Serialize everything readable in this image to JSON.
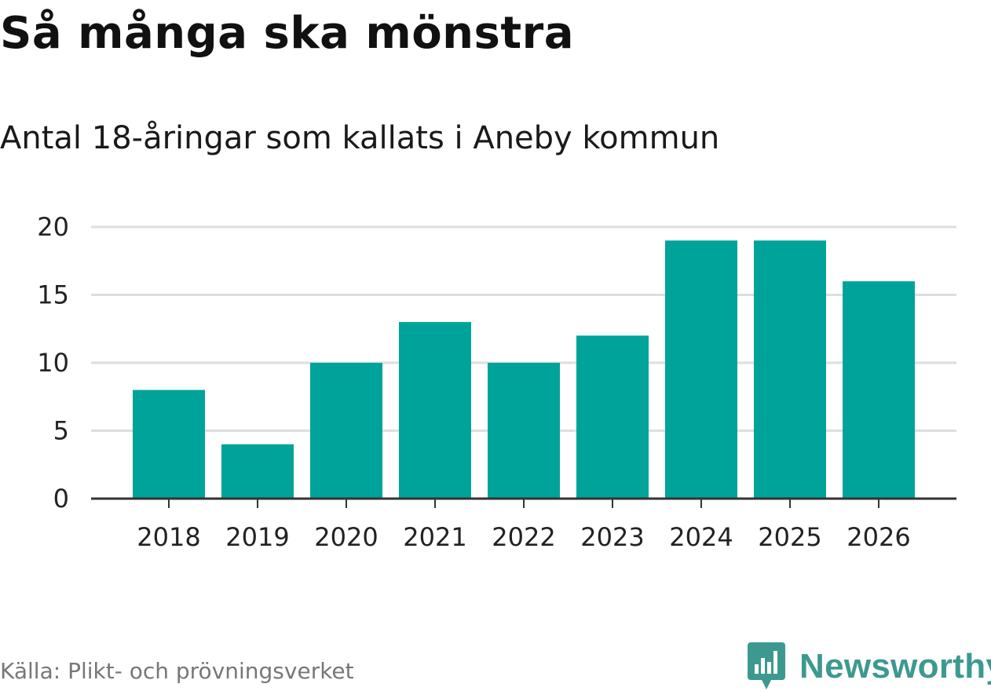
{
  "colors": {
    "bar": "#00a39a",
    "grid": "#dedede",
    "axis": "#333333",
    "tick_text": "#222222",
    "brand": "#3d9990"
  },
  "chart_data": {
    "type": "bar",
    "title": "Så många ska mönstra",
    "subtitle": "Antal 18-åringar som kallats i Aneby kommun",
    "categories": [
      "2018",
      "2019",
      "2020",
      "2021",
      "2022",
      "2023",
      "2024",
      "2025",
      "2026"
    ],
    "values": [
      8,
      4,
      10,
      13,
      10,
      12,
      19,
      19,
      16
    ],
    "yticks": [
      "0",
      "5",
      "10",
      "15",
      "20"
    ],
    "ylim": [
      0,
      20
    ],
    "xlabel": "",
    "ylabel": "",
    "grid": true,
    "legend": "none"
  },
  "source": "Källa: Plikt- och prövningsverket",
  "brand": {
    "name": "Newsworthy",
    "icon": "newsworthy-logo-icon"
  }
}
